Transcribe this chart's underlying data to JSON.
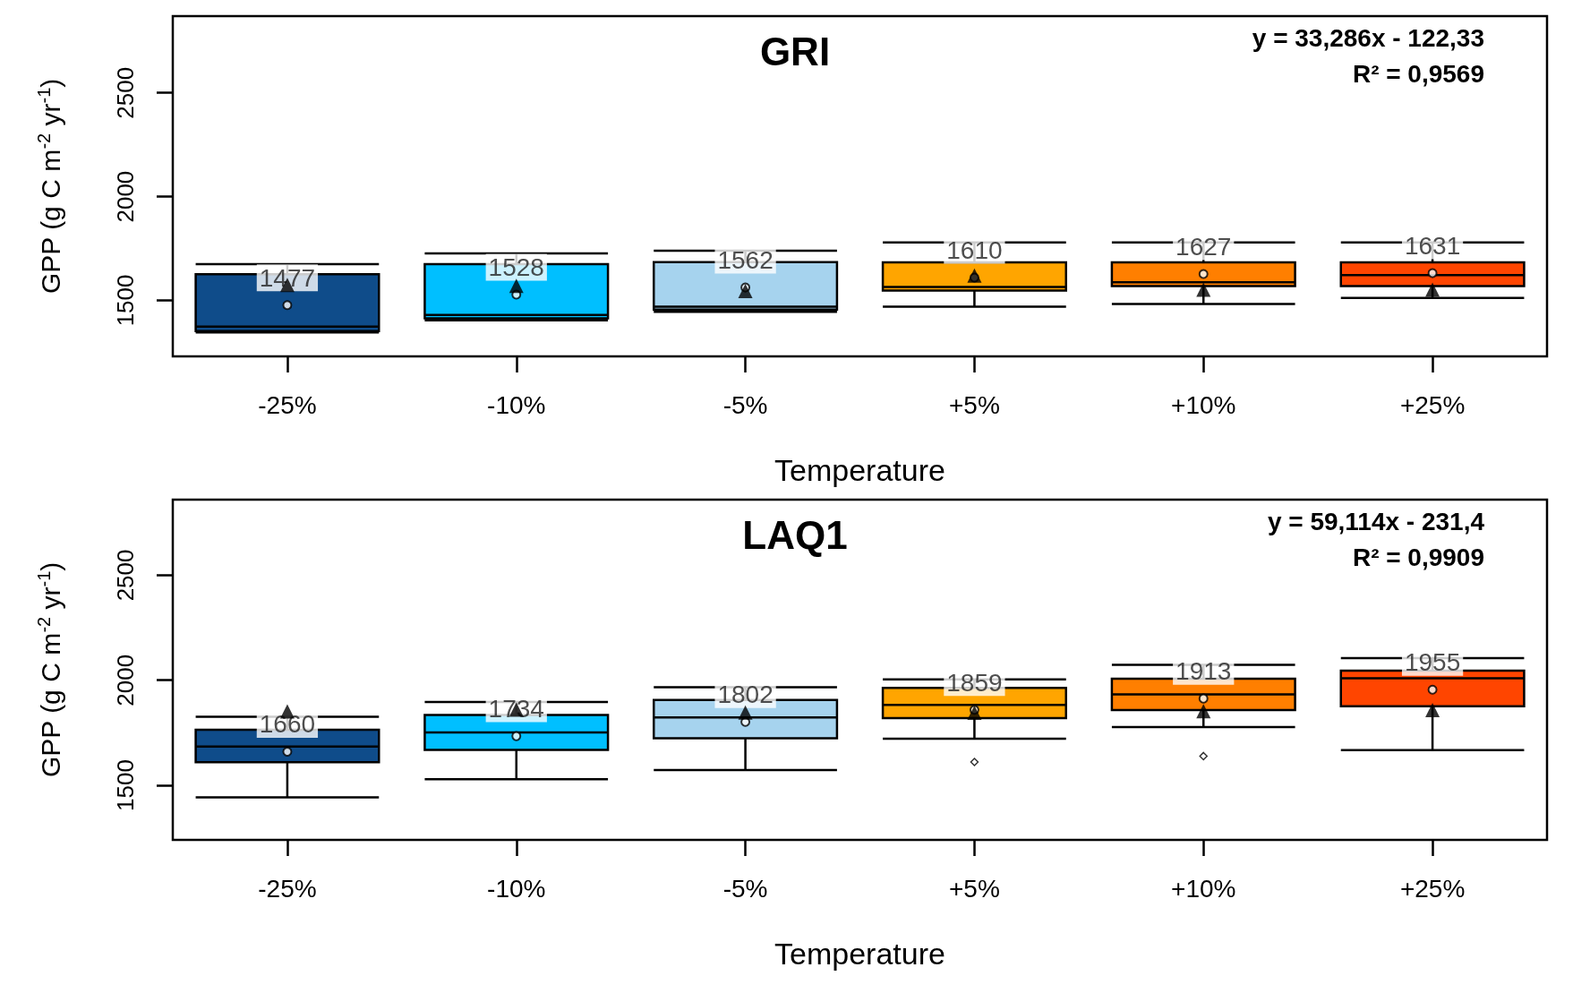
{
  "chart_data": [
    {
      "type": "box",
      "title": "GRI",
      "xlabel": "Temperature",
      "ylabel": "GPP (g C m$^{-2}$ yr$^{-1}$)",
      "categories": [
        "-25%",
        "-10%",
        "-5%",
        "+5%",
        "+10%",
        "+25%"
      ],
      "ylim": [
        1230,
        2870
      ],
      "yticks": [
        1500,
        2000,
        2500
      ],
      "grid": false,
      "annotations": [
        "y = 33,286x - 122,33",
        "R² = 0,9569"
      ],
      "series": [
        {
          "colors": [
            "#0f4c8a",
            "#00bfff",
            "#a6d3ee",
            "#ffa500",
            "#ff7f00",
            "#ff4500"
          ],
          "value_labels": [
            "1477",
            "1528",
            "1562",
            "1610",
            "1627",
            "1631"
          ],
          "boxes": [
            {
              "low": 1345,
              "q1": 1352,
              "median": 1374,
              "q3": 1626,
              "high": 1674,
              "mean": 1477
            },
            {
              "low": 1404,
              "q1": 1413,
              "median": 1430,
              "q3": 1674,
              "high": 1726,
              "mean": 1528
            },
            {
              "low": 1445,
              "q1": 1456,
              "median": 1470,
              "q3": 1684,
              "high": 1739,
              "mean": 1562
            },
            {
              "low": 1469,
              "q1": 1547,
              "median": 1564,
              "q3": 1683,
              "high": 1779,
              "mean": 1610
            },
            {
              "low": 1483,
              "q1": 1569,
              "median": 1587,
              "q3": 1683,
              "high": 1779,
              "mean": 1627
            },
            {
              "low": 1512,
              "q1": 1569,
              "median": 1622,
              "q3": 1683,
              "high": 1779,
              "mean": 1631
            }
          ]
        },
        {
          "type": "scatter",
          "marker": "triangle",
          "color": "#000000",
          "x": [
            "-25%",
            "-10%",
            "-5%",
            "+5%",
            "+10%",
            "+25%"
          ],
          "values": [
            1574,
            1570,
            1545,
            1620,
            1552,
            1552
          ]
        }
      ]
    },
    {
      "type": "box",
      "title": "LAQ1",
      "xlabel": "Temperature",
      "ylabel": "GPP (g C m$^{-2}$ yr$^{-1}$)",
      "categories": [
        "-25%",
        "-10%",
        "-5%",
        "+5%",
        "+10%",
        "+25%"
      ],
      "ylim": [
        1240,
        2860
      ],
      "yticks": [
        1500,
        2000,
        2500
      ],
      "grid": false,
      "annotations": [
        "y = 59,114x - 231,4",
        "R² = 0,9909"
      ],
      "series": [
        {
          "colors": [
            "#0f4c8a",
            "#00bfff",
            "#a6d3ee",
            "#ffa500",
            "#ff7f00",
            "#ff4500"
          ],
          "value_labels": [
            "1660",
            "1734",
            "1802",
            "1859",
            "1913",
            "1955"
          ],
          "boxes": [
            {
              "low": 1443,
              "q1": 1610,
              "median": 1684,
              "q3": 1764,
              "high": 1826,
              "mean": 1660
            },
            {
              "low": 1529,
              "q1": 1668,
              "median": 1752,
              "q3": 1835,
              "high": 1896,
              "mean": 1734
            },
            {
              "low": 1572,
              "q1": 1724,
              "median": 1823,
              "q3": 1906,
              "high": 1967,
              "mean": 1802
            },
            {
              "low": 1722,
              "q1": 1820,
              "median": 1883,
              "q3": 1964,
              "high": 2004,
              "mean": 1859,
              "outliers": [
                1611
              ]
            },
            {
              "low": 1777,
              "q1": 1858,
              "median": 1933,
              "q3": 2007,
              "high": 2073,
              "mean": 1913,
              "outliers": [
                1639
              ]
            },
            {
              "low": 1667,
              "q1": 1876,
              "median": 2009,
              "q3": 2046,
              "high": 2105,
              "mean": 1955
            }
          ]
        },
        {
          "type": "scatter",
          "marker": "triangle",
          "color": "#000000",
          "x": [
            "-25%",
            "-10%",
            "-5%",
            "+5%",
            "+10%",
            "+25%"
          ],
          "values": [
            1852,
            1860,
            1846,
            1845,
            1853,
            1858
          ]
        }
      ]
    }
  ]
}
